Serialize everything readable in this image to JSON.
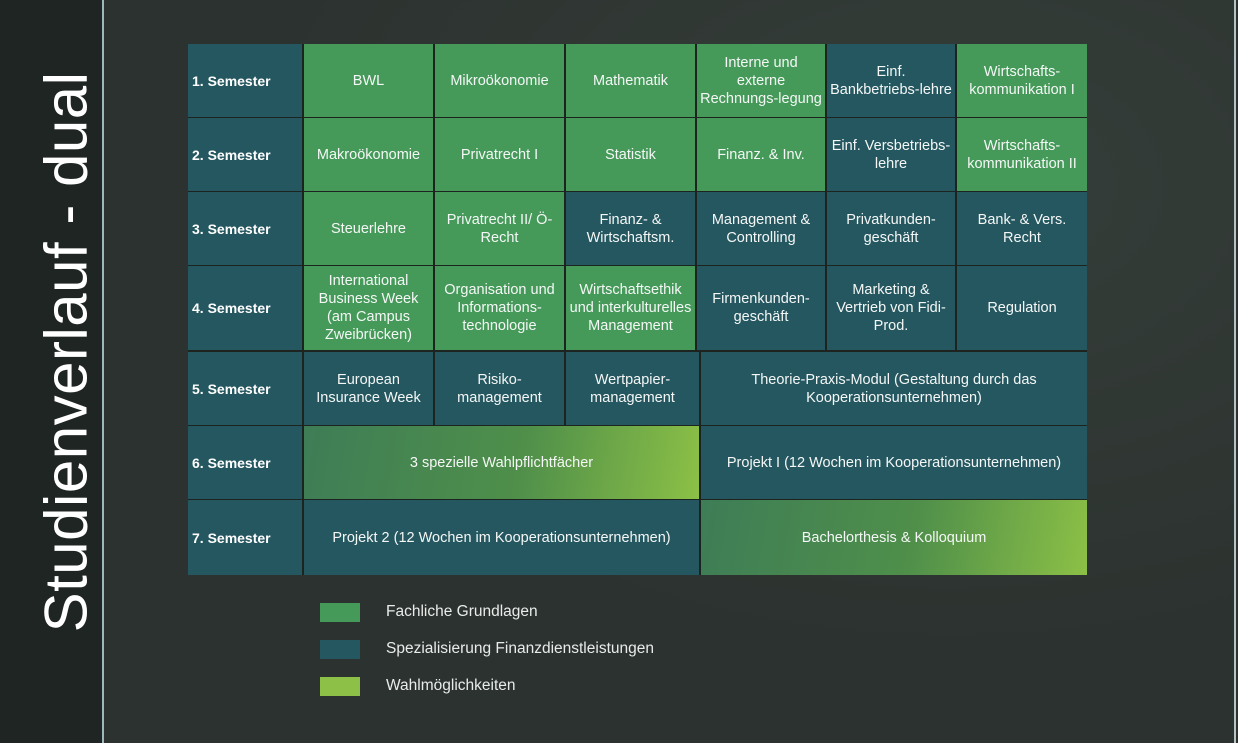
{
  "title": "Studienverlauf - dual",
  "colors": {
    "fachliche_grundlagen": "#459a5a",
    "spezialisierung": "#255761",
    "wahlmoeglichkeiten": "#8cc046"
  },
  "semesters": [
    "1. Semester",
    "2. Semester",
    "3. Semester",
    "4. Semester",
    "5. Semester",
    "6. Semester",
    "7. Semester"
  ],
  "rows": {
    "r1": [
      "BWL",
      "Mikroökonomie",
      "Mathematik",
      "Interne und externe Rechnungs-legung",
      "Einf. Bankbetriebs-lehre",
      "Wirtschafts-kommunikation I"
    ],
    "r2": [
      "Makroökonomie",
      "Privatrecht I",
      "Statistik",
      "Finanz. & Inv.",
      "Einf. Versbetriebs-lehre",
      "Wirtschafts-kommunikation II"
    ],
    "r3": [
      "Steuerlehre",
      "Privatrecht II/ Ö-Recht",
      "Finanz- & Wirtschaftsm.",
      "Management & Controlling",
      "Privatkunden-geschäft",
      "Bank- & Vers. Recht"
    ],
    "r4": [
      "International Business Week (am Campus Zweibrücken)",
      "Organisation und Informations-technologie",
      "Wirtschaftsethik und interkulturelles Management",
      "Firmenkunden-geschäft",
      "Marketing & Vertrieb von Fidi-Prod.",
      "Regulation"
    ],
    "r5": [
      "European Insurance Week",
      "Risiko-management",
      "Wertpapier-management",
      "Theorie-Praxis-Modul (Gestaltung durch das Kooperationsunternehmen)"
    ],
    "r6": [
      "3 spezielle Wahlpflichtfächer",
      "Projekt I (12 Wochen im Kooperationsunternehmen)"
    ],
    "r7": [
      "Projekt 2 (12 Wochen im Kooperationsunternehmen)",
      "Bachelorthesis & Kolloquium"
    ]
  },
  "legend": [
    "Fachliche Grundlagen",
    "Spezialisierung Finanzdienstleistungen",
    "Wahlmöglichkeiten"
  ]
}
